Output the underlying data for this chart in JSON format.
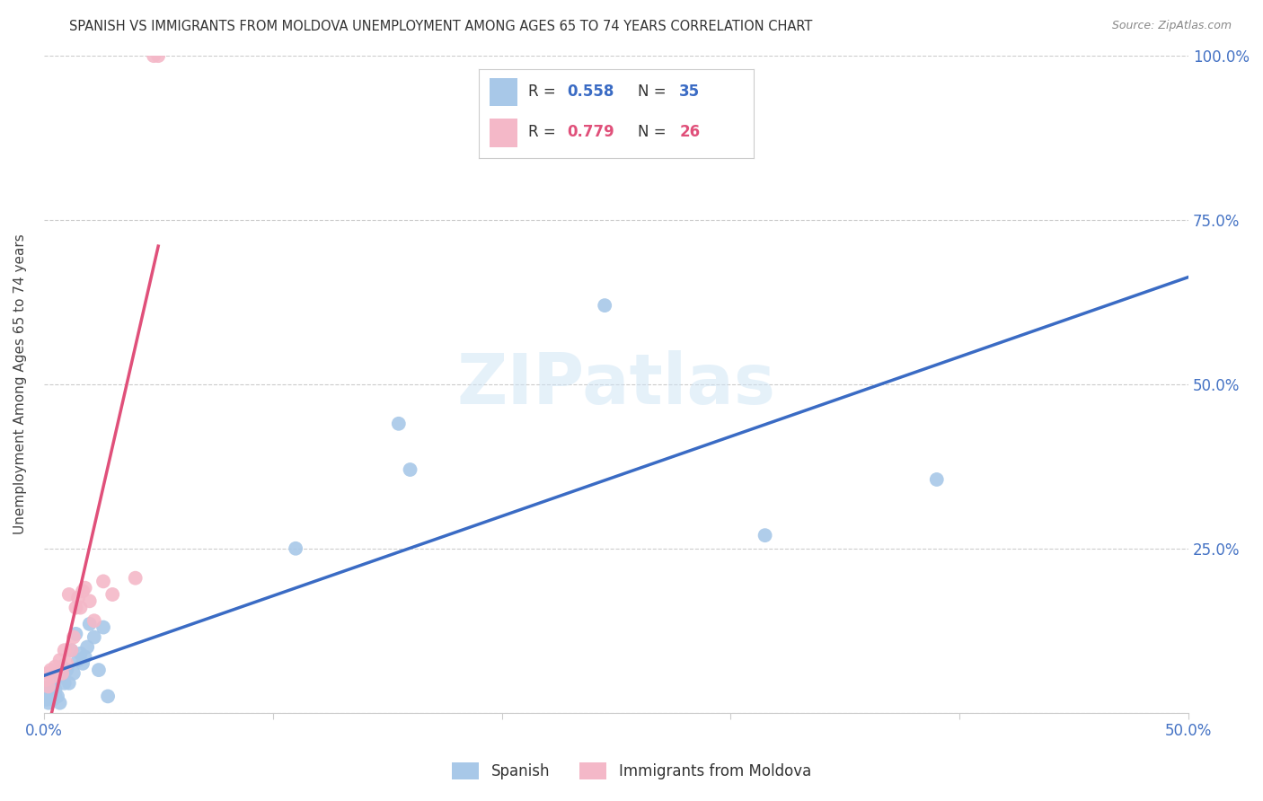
{
  "title": "SPANISH VS IMMIGRANTS FROM MOLDOVA UNEMPLOYMENT AMONG AGES 65 TO 74 YEARS CORRELATION CHART",
  "source": "Source: ZipAtlas.com",
  "ylabel": "Unemployment Among Ages 65 to 74 years",
  "xlim": [
    0,
    0.5
  ],
  "ylim": [
    0,
    1.0
  ],
  "xticks": [
    0.0,
    0.1,
    0.2,
    0.3,
    0.4,
    0.5
  ],
  "xtick_labels": [
    "0.0%",
    "",
    "",
    "",
    "",
    "50.0%"
  ],
  "yticks": [
    0.0,
    0.25,
    0.5,
    0.75,
    1.0
  ],
  "right_ytick_labels": [
    "",
    "25.0%",
    "50.0%",
    "75.0%",
    "100.0%"
  ],
  "spanish_R": 0.558,
  "spanish_N": 35,
  "moldova_R": 0.779,
  "moldova_N": 26,
  "spanish_color": "#a8c8e8",
  "moldova_color": "#f4b8c8",
  "spanish_line_color": "#3a6bc4",
  "moldova_line_color": "#e0507a",
  "legend_label_spanish": "Spanish",
  "legend_label_moldova": "Immigrants from Moldova",
  "watermark": "ZIPatlas",
  "spanish_x": [
    0.001,
    0.002,
    0.002,
    0.003,
    0.003,
    0.004,
    0.004,
    0.005,
    0.005,
    0.006,
    0.007,
    0.007,
    0.008,
    0.009,
    0.01,
    0.011,
    0.012,
    0.013,
    0.014,
    0.015,
    0.016,
    0.017,
    0.018,
    0.019,
    0.02,
    0.022,
    0.024,
    0.026,
    0.028,
    0.11,
    0.155,
    0.16,
    0.245,
    0.315,
    0.39
  ],
  "spanish_y": [
    0.02,
    0.03,
    0.015,
    0.04,
    0.025,
    0.035,
    0.02,
    0.035,
    0.025,
    0.025,
    0.015,
    0.055,
    0.07,
    0.045,
    0.065,
    0.045,
    0.095,
    0.06,
    0.12,
    0.08,
    0.09,
    0.075,
    0.085,
    0.1,
    0.135,
    0.115,
    0.065,
    0.13,
    0.025,
    0.25,
    0.44,
    0.37,
    0.62,
    0.27,
    0.355
  ],
  "moldova_x": [
    0.001,
    0.002,
    0.002,
    0.003,
    0.004,
    0.005,
    0.006,
    0.007,
    0.008,
    0.009,
    0.01,
    0.011,
    0.012,
    0.013,
    0.014,
    0.015,
    0.016,
    0.017,
    0.018,
    0.02,
    0.022,
    0.026,
    0.03,
    0.04,
    0.048,
    0.05
  ],
  "moldova_y": [
    0.05,
    0.04,
    0.06,
    0.065,
    0.055,
    0.07,
    0.065,
    0.08,
    0.06,
    0.095,
    0.075,
    0.18,
    0.095,
    0.115,
    0.16,
    0.175,
    0.16,
    0.185,
    0.19,
    0.17,
    0.14,
    0.2,
    0.18,
    0.205,
    1.0,
    1.0
  ],
  "background_color": "#ffffff",
  "grid_color": "#cccccc"
}
